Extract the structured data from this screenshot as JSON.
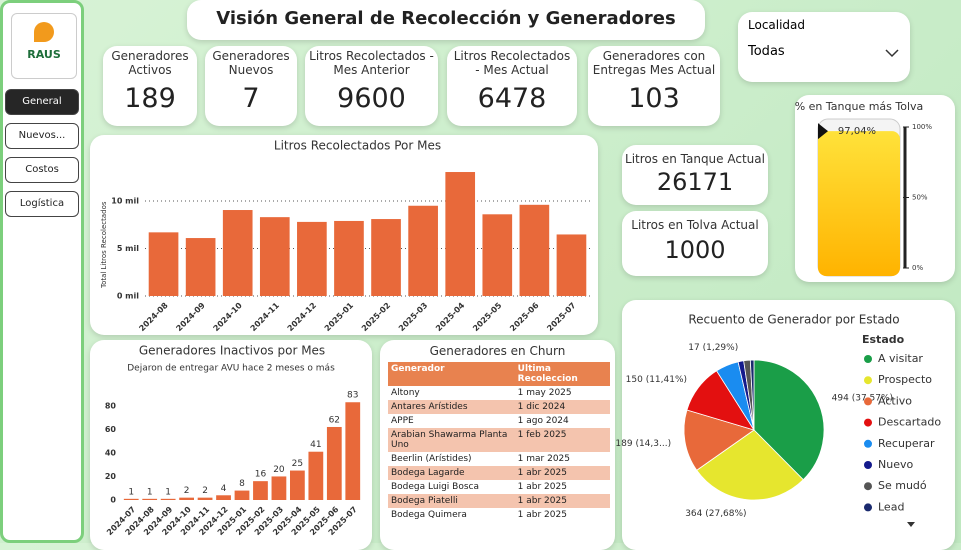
{
  "sidebar": {
    "logo": "RAUS",
    "nav": [
      "General",
      "Nuevos...",
      "Costos",
      "Logística"
    ]
  },
  "title": "Visión General de Recolección y Generadores",
  "filter": {
    "label": "Localidad",
    "value": "Todas"
  },
  "kpis": [
    {
      "label": "Generadores Activos",
      "value": 189
    },
    {
      "label": "Generadores Nuevos",
      "value": 7
    },
    {
      "label": "Litros Recolectados - Mes Anterior",
      "value": 9600
    },
    {
      "label": "Litros Recolectados - Mes Actual",
      "value": 6478
    },
    {
      "label": "Generadores con Entregas Mes Actual",
      "value": 103
    },
    {
      "label": "Litros en Tanque Actual",
      "value": 26171
    },
    {
      "label": "Litros en Tolva Actual",
      "value": 1000
    }
  ],
  "churn": {
    "title": "Generadores en Churn",
    "columns": [
      "Generador",
      "Ultima Recoleccion"
    ],
    "rows": [
      [
        "Altony",
        "1 may 2025"
      ],
      [
        "Antares Arístides",
        "1 dic 2024"
      ],
      [
        "APPE",
        "1 ago 2024"
      ],
      [
        "Arabian Shawarma Planta Uno",
        "1 feb 2025"
      ],
      [
        "Beerlin (Arístides)",
        "1 mar 2025"
      ],
      [
        "Bodega Lagarde",
        "1 abr 2025"
      ],
      [
        "Bodega Luigi Bosca",
        "1 abr 2025"
      ],
      [
        "Bodega Piatelli",
        "1 abr 2025"
      ],
      [
        "Bodega Quimera",
        "1 abr 2025"
      ]
    ]
  },
  "chart_data": [
    {
      "type": "bar",
      "title": "Litros Recolectados Por Mes",
      "ylabel": "Total Litros Recolectados",
      "categories": [
        "2024-08",
        "2024-09",
        "2024-10",
        "2024-11",
        "2024-12",
        "2025-01",
        "2025-02",
        "2025-03",
        "2025-04",
        "2025-05",
        "2025-06",
        "2025-07"
      ],
      "values": [
        6700,
        6100,
        9050,
        8300,
        7800,
        7900,
        8100,
        9500,
        13050,
        8600,
        9600,
        6478
      ],
      "color": "#e8693a",
      "ylim": [
        0,
        15000
      ],
      "yticks": [
        {
          "value": 0,
          "label": "0 mil"
        },
        {
          "value": 5000,
          "label": "5 mil"
        },
        {
          "value": 10000,
          "label": "10 mil"
        }
      ],
      "grid": true,
      "data_labels": false
    },
    {
      "type": "bar",
      "title": "Generadores Inactivos por Mes",
      "subtitle": "Dejaron de entregar AVU hace 2 meses o más",
      "categories": [
        "2024-07",
        "2024-08",
        "2024-09",
        "2024-10",
        "2024-11",
        "2024-12",
        "2025-01",
        "2025-02",
        "2025-03",
        "2025-04",
        "2025-05",
        "2025-06",
        "2025-07"
      ],
      "values": [
        1,
        1,
        1,
        2,
        2,
        4,
        8,
        16,
        20,
        25,
        41,
        62,
        83
      ],
      "color": "#e8693a",
      "ylim": [
        0,
        90
      ],
      "yticks": [
        0,
        20,
        40,
        60,
        80
      ],
      "grid": false,
      "data_labels": true
    },
    {
      "type": "pie",
      "title": "Recuento de Generador por Estado",
      "legend_title": "Estado",
      "categories": [
        "A visitar",
        "Prospecto",
        "Activo",
        "Descartado",
        "Recuperar",
        "Nuevo",
        "Se mudó",
        "Lead"
      ],
      "values": [
        494,
        364,
        189,
        150,
        70,
        17,
        20,
        11
      ],
      "value_labels": [
        "494 (37,57%)",
        "364 (27,68%)",
        "189 (14,3...)",
        "150 (11,41%)",
        null,
        "17 (1,29%)",
        null,
        null
      ],
      "colors": [
        "#1a9e48",
        "#e6e62e",
        "#e8693a",
        "#e31010",
        "#1a8cf0",
        "#141a8c",
        "#555555",
        "#1a2a6e"
      ]
    },
    {
      "type": "gauge",
      "title": "% en Tanque más Tolva",
      "value": 97.04,
      "value_label": "97,04%",
      "ylim": [
        0,
        100
      ],
      "yticks": [
        {
          "value": 0,
          "label": "0%"
        },
        {
          "value": 50,
          "label": "50%"
        },
        {
          "value": 100,
          "label": "100%"
        }
      ],
      "color": "#ffcc00"
    }
  ]
}
